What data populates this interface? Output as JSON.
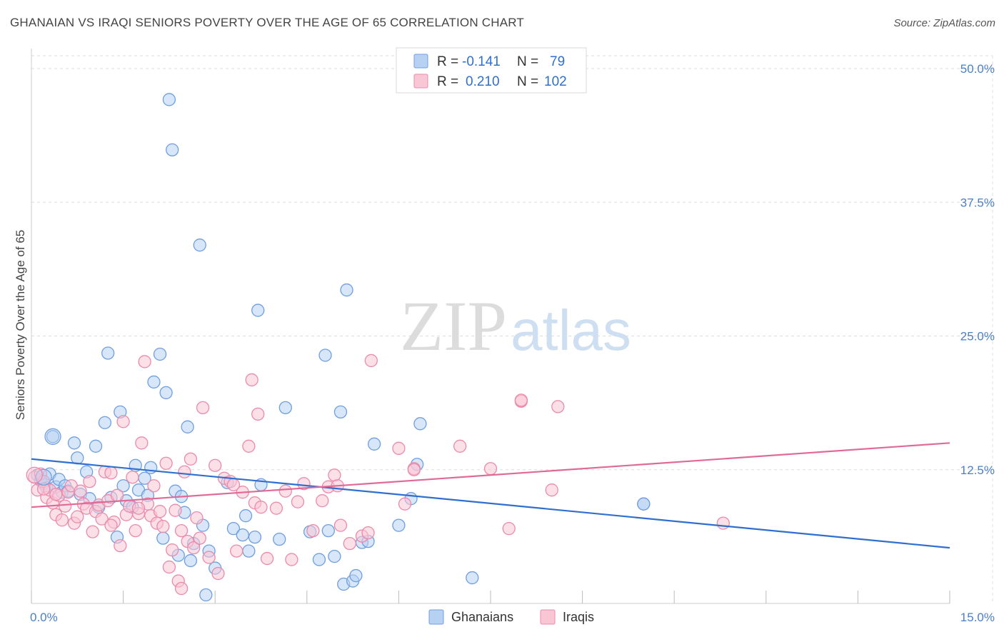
{
  "title": "GHANAIAN VS IRAQI SENIORS POVERTY OVER THE AGE OF 65 CORRELATION CHART",
  "source": "Source: ZipAtlas.com",
  "watermark": {
    "zip": "ZIP",
    "atlas": "atlas"
  },
  "legend_top": [
    {
      "r_label": "R =",
      "r_value": "-0.141",
      "n_label": "N =",
      "n_value": "79",
      "fill": "#b7d1f3",
      "stroke": "#6f9fe0"
    },
    {
      "r_label": "R =",
      "r_value": "0.210",
      "n_label": "N =",
      "n_value": "102",
      "fill": "#f9c6d6",
      "stroke": "#ea8bab"
    }
  ],
  "chart_data": {
    "type": "scatter",
    "ylabel": "Seniors Poverty Over the Age of 65",
    "xlim": [
      0,
      15
    ],
    "ylim": [
      0,
      50
    ],
    "x_tick_labels": [
      {
        "value": 0,
        "label": "0.0%"
      },
      {
        "value": 15,
        "label": "15.0%"
      }
    ],
    "y_tick_labels": [
      {
        "value": 12.5,
        "label": "12.5%"
      },
      {
        "value": 25,
        "label": "25.0%"
      },
      {
        "value": 37.5,
        "label": "37.5%"
      },
      {
        "value": 50,
        "label": "50.0%"
      }
    ],
    "legend_placement": "top-center",
    "series": [
      {
        "name": "Ghanaians",
        "color": "#6f9fe0",
        "fill": "#b7d1f3",
        "line_color": "#2f6fd0",
        "trend": {
          "x": [
            0,
            15
          ],
          "y": [
            13.5,
            5.2
          ]
        },
        "points": [
          [
            0.1,
            12.0
          ],
          [
            0.15,
            11.5
          ],
          [
            0.2,
            11.2
          ],
          [
            0.25,
            10.8
          ],
          [
            0.3,
            12.1
          ],
          [
            0.35,
            15.6
          ],
          [
            0.4,
            10.9
          ],
          [
            0.45,
            11.6
          ],
          [
            0.5,
            10.4
          ],
          [
            0.55,
            11.0
          ],
          [
            0.6,
            10.5
          ],
          [
            0.7,
            15.0
          ],
          [
            0.75,
            13.6
          ],
          [
            0.8,
            10.2
          ],
          [
            0.9,
            12.3
          ],
          [
            0.95,
            9.8
          ],
          [
            1.05,
            14.7
          ],
          [
            1.1,
            9.0
          ],
          [
            1.2,
            16.9
          ],
          [
            1.25,
            23.4
          ],
          [
            1.3,
            9.9
          ],
          [
            1.4,
            6.2
          ],
          [
            1.45,
            17.9
          ],
          [
            1.5,
            11.0
          ],
          [
            1.55,
            9.6
          ],
          [
            1.65,
            9.0
          ],
          [
            1.7,
            12.9
          ],
          [
            1.75,
            10.6
          ],
          [
            1.85,
            11.7
          ],
          [
            1.9,
            10.1
          ],
          [
            1.95,
            12.7
          ],
          [
            2.0,
            20.7
          ],
          [
            2.1,
            23.3
          ],
          [
            2.15,
            6.1
          ],
          [
            2.2,
            19.7
          ],
          [
            2.25,
            47.1
          ],
          [
            2.3,
            42.4
          ],
          [
            2.35,
            10.5
          ],
          [
            2.4,
            4.5
          ],
          [
            2.45,
            10.0
          ],
          [
            2.5,
            8.5
          ],
          [
            2.55,
            16.5
          ],
          [
            2.6,
            4.0
          ],
          [
            2.65,
            5.6
          ],
          [
            2.75,
            33.5
          ],
          [
            2.8,
            7.3
          ],
          [
            2.85,
            0.8
          ],
          [
            2.9,
            4.9
          ],
          [
            3.0,
            3.3
          ],
          [
            3.2,
            11.3
          ],
          [
            3.3,
            7.0
          ],
          [
            3.45,
            6.4
          ],
          [
            3.5,
            8.2
          ],
          [
            3.55,
            4.9
          ],
          [
            3.65,
            6.2
          ],
          [
            3.7,
            27.4
          ],
          [
            3.75,
            11.1
          ],
          [
            4.05,
            6.0
          ],
          [
            4.15,
            18.3
          ],
          [
            4.55,
            6.7
          ],
          [
            4.7,
            4.1
          ],
          [
            4.8,
            23.2
          ],
          [
            4.85,
            6.8
          ],
          [
            4.95,
            4.4
          ],
          [
            5.05,
            17.9
          ],
          [
            5.1,
            1.8
          ],
          [
            5.15,
            29.3
          ],
          [
            5.25,
            2.1
          ],
          [
            5.3,
            2.6
          ],
          [
            5.4,
            5.7
          ],
          [
            5.5,
            5.8
          ],
          [
            5.6,
            14.9
          ],
          [
            6.0,
            7.3
          ],
          [
            6.2,
            9.8
          ],
          [
            6.3,
            13.0
          ],
          [
            6.35,
            16.8
          ],
          [
            7.2,
            2.4
          ],
          [
            10.0,
            9.3
          ],
          [
            10.0,
            9.3
          ]
        ]
      },
      {
        "name": "Iraqis",
        "color": "#ea8bab",
        "fill": "#f9c6d6",
        "line_color": "#e06a96",
        "trend": {
          "x": [
            0,
            15
          ],
          "y": [
            9.0,
            15.0
          ]
        },
        "points": [
          [
            0.05,
            11.8
          ],
          [
            0.1,
            10.6
          ],
          [
            0.15,
            12.1
          ],
          [
            0.2,
            11.4
          ],
          [
            0.25,
            9.9
          ],
          [
            0.3,
            10.6
          ],
          [
            0.35,
            9.4
          ],
          [
            0.4,
            8.3
          ],
          [
            0.45,
            10.1
          ],
          [
            0.5,
            7.8
          ],
          [
            0.55,
            9.1
          ],
          [
            0.6,
            10.4
          ],
          [
            0.65,
            11.0
          ],
          [
            0.7,
            7.5
          ],
          [
            0.75,
            8.1
          ],
          [
            0.8,
            10.5
          ],
          [
            0.85,
            9.3
          ],
          [
            0.9,
            8.9
          ],
          [
            0.95,
            11.4
          ],
          [
            1.0,
            6.7
          ],
          [
            1.05,
            8.6
          ],
          [
            1.1,
            9.2
          ],
          [
            1.15,
            7.9
          ],
          [
            1.2,
            12.3
          ],
          [
            1.25,
            9.6
          ],
          [
            1.3,
            12.2
          ],
          [
            1.35,
            7.6
          ],
          [
            1.4,
            10.1
          ],
          [
            1.45,
            5.4
          ],
          [
            1.5,
            17.0
          ],
          [
            1.55,
            8.3
          ],
          [
            1.6,
            9.1
          ],
          [
            1.65,
            11.8
          ],
          [
            1.7,
            6.8
          ],
          [
            1.75,
            8.4
          ],
          [
            1.8,
            15.0
          ],
          [
            1.85,
            22.6
          ],
          [
            1.9,
            9.3
          ],
          [
            1.95,
            8.2
          ],
          [
            2.0,
            11.0
          ],
          [
            2.05,
            7.5
          ],
          [
            2.1,
            8.6
          ],
          [
            2.15,
            7.2
          ],
          [
            2.2,
            13.1
          ],
          [
            2.25,
            3.4
          ],
          [
            2.3,
            5.0
          ],
          [
            2.35,
            8.7
          ],
          [
            2.4,
            2.1
          ],
          [
            2.45,
            6.8
          ],
          [
            2.5,
            12.3
          ],
          [
            2.55,
            5.8
          ],
          [
            2.6,
            13.5
          ],
          [
            2.65,
            5.2
          ],
          [
            2.7,
            8.0
          ],
          [
            2.75,
            6.1
          ],
          [
            2.8,
            18.3
          ],
          [
            2.9,
            4.3
          ],
          [
            3.0,
            12.9
          ],
          [
            3.05,
            2.8
          ],
          [
            3.15,
            11.7
          ],
          [
            3.25,
            11.4
          ],
          [
            3.35,
            4.9
          ],
          [
            3.45,
            10.4
          ],
          [
            3.55,
            14.7
          ],
          [
            3.6,
            20.9
          ],
          [
            3.65,
            9.4
          ],
          [
            3.7,
            17.7
          ],
          [
            3.75,
            9.0
          ],
          [
            3.85,
            4.2
          ],
          [
            4.0,
            8.9
          ],
          [
            4.15,
            10.5
          ],
          [
            4.25,
            4.1
          ],
          [
            4.35,
            9.5
          ],
          [
            4.45,
            11.2
          ],
          [
            4.6,
            6.8
          ],
          [
            4.75,
            9.6
          ],
          [
            4.85,
            10.9
          ],
          [
            4.95,
            12.0
          ],
          [
            5.05,
            7.3
          ],
          [
            5.2,
            5.6
          ],
          [
            5.4,
            6.3
          ],
          [
            5.5,
            6.6
          ],
          [
            5.55,
            22.7
          ],
          [
            6.0,
            14.5
          ],
          [
            6.1,
            9.3
          ],
          [
            6.25,
            12.6
          ],
          [
            7.0,
            14.7
          ],
          [
            7.5,
            12.6
          ],
          [
            8.0,
            18.9
          ],
          [
            7.8,
            7.0
          ],
          [
            8.6,
            18.4
          ],
          [
            8.5,
            10.6
          ],
          [
            8.0,
            19.0
          ],
          [
            11.3,
            7.5
          ],
          [
            0.2,
            10.7
          ],
          [
            0.4,
            10.2
          ],
          [
            2.45,
            1.4
          ],
          [
            1.75,
            8.9
          ],
          [
            3.3,
            11.1
          ],
          [
            5.0,
            11.0
          ],
          [
            6.25,
            12.5
          ],
          [
            1.3,
            7.3
          ]
        ]
      }
    ]
  },
  "bottom_legend": [
    {
      "label": "Ghanaians",
      "fill": "#b7d1f3",
      "stroke": "#6f9fe0"
    },
    {
      "label": "Iraqis",
      "fill": "#f9c6d6",
      "stroke": "#ea8bab"
    }
  ]
}
